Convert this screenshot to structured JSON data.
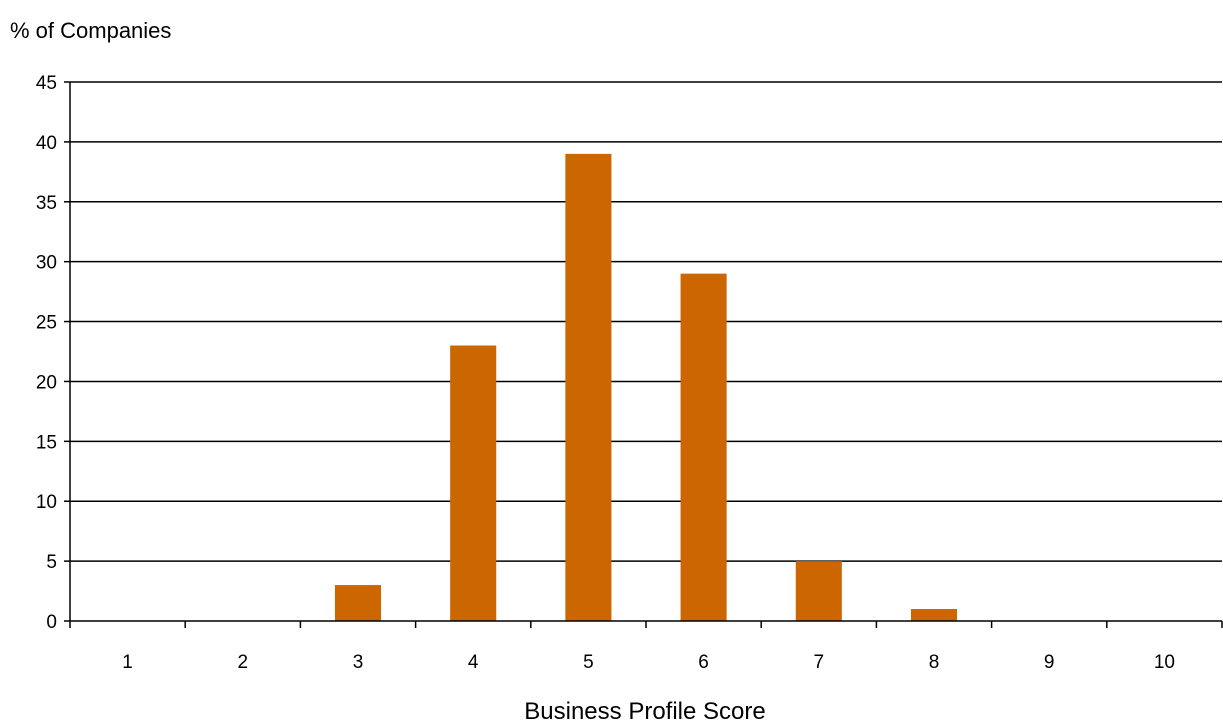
{
  "chart_data": {
    "type": "bar",
    "title": "",
    "ylabel": "% of Companies",
    "xlabel": "Business Profile Score",
    "categories": [
      "1",
      "2",
      "3",
      "4",
      "5",
      "6",
      "7",
      "8",
      "9",
      "10"
    ],
    "values": [
      0,
      0,
      3,
      23,
      39,
      29,
      5,
      1,
      0,
      0
    ],
    "ylim": [
      0,
      45
    ],
    "yticks": [
      "0",
      "5",
      "10",
      "15",
      "20",
      "25",
      "30",
      "35",
      "40",
      "45"
    ],
    "grid": "horizontal",
    "legend": "none",
    "colors": {
      "bar": "#CC6600",
      "grid": "#000000",
      "axis": "#000000",
      "background": "#FFFFFF"
    }
  }
}
